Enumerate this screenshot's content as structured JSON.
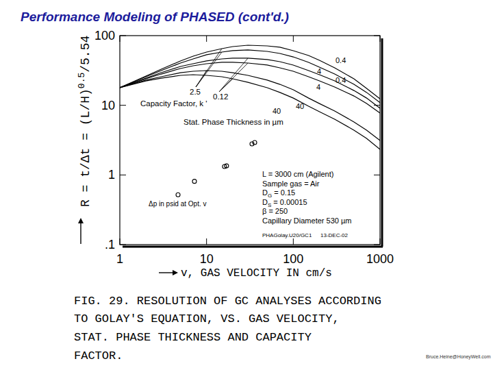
{
  "chart_data": {
    "type": "line",
    "title": "Performance Modeling of PHASED (cont'd.)",
    "xlabel": "v, GAS VELOCITY IN cm/s",
    "ylabel": [
      "R = t/Δt = (L/H)",
      "0.5",
      "/5.54"
    ],
    "log": true,
    "grid": false,
    "xlim": [
      1,
      1000
    ],
    "xticks": [
      1,
      10,
      100,
      1000
    ],
    "ylim": [
      0.1,
      100
    ],
    "yticks": [
      {
        "value": 0.1,
        "label": ".1"
      },
      1,
      10,
      100
    ],
    "x": [
      1,
      2,
      3,
      5,
      7,
      10,
      15,
      20,
      30,
      50,
      70,
      100,
      150,
      200,
      300,
      500,
      700,
      1000
    ],
    "series": [
      {
        "name": "0.4",
        "color": "#000000",
        "line_style": "solid",
        "values": [
          17.9,
          26.3,
          33.0,
          43.3,
          50.7,
          58.1,
          65.0,
          69.6,
          72.8,
          71.2,
          68.1,
          60.8,
          51.9,
          44.3,
          34.5,
          24.0,
          17.5,
          12.4
        ]
      },
      {
        "name": "4",
        "color": "#000000",
        "line_style": "solid",
        "values": [
          17.9,
          25.7,
          31.5,
          40.4,
          46.3,
          53.1,
          58.1,
          60.8,
          62.2,
          59.4,
          55.5,
          49.5,
          41.4,
          35.3,
          28.1,
          20.0,
          15.3,
          10.9
        ]
      },
      {
        "name": "0.4",
        "color": "#000000",
        "line_style": "solid",
        "values": [
          17.9,
          24.5,
          29.4,
          36.1,
          39.5,
          43.3,
          46.3,
          47.4,
          47.4,
          45.3,
          42.3,
          37.8,
          31.5,
          27.5,
          22.4,
          16.3,
          12.7,
          9.08
        ]
      },
      {
        "name": "4",
        "color": "#000000",
        "line_style": "solid",
        "values": [
          17.9,
          24.0,
          28.1,
          33.7,
          36.9,
          39.5,
          41.4,
          41.4,
          40.4,
          37.8,
          34.5,
          30.8,
          25.7,
          22.4,
          18.3,
          13.6,
          10.6,
          7.74
        ]
      },
      {
        "name": "40",
        "color": "#000000",
        "line_style": "solid",
        "values": [
          17.9,
          23.0,
          25.7,
          29.4,
          30.8,
          31.5,
          30.8,
          29.4,
          26.9,
          23.0,
          20.0,
          16.7,
          12.7,
          10.6,
          8.28,
          5.77,
          4.4,
          3.13
        ]
      },
      {
        "name": "40",
        "color": "#000000",
        "line_style": "solid",
        "values": [
          17.9,
          22.4,
          24.5,
          26.9,
          27.5,
          26.9,
          25.7,
          24.0,
          21.4,
          17.9,
          15.3,
          12.7,
          9.7,
          8.11,
          6.31,
          4.4,
          3.35,
          2.33
        ]
      },
      {
        "name": "Δp in psid at Opt. v",
        "type": "scatter",
        "marker": "circle",
        "color": "#000000",
        "x": [
          4.69,
          7.25,
          16.1,
          17.0,
          33.4,
          35.9
        ],
        "values": [
          0.52,
          0.81,
          1.32,
          1.35,
          2.79,
          2.92
        ]
      }
    ],
    "capacity_factor": {
      "label": "Capacity Factor, k '",
      "groups": [
        {
          "label": "2.5",
          "series": [
            0,
            1,
            4
          ]
        },
        {
          "label": "0.12",
          "series": [
            2,
            3,
            5
          ]
        }
      ]
    },
    "thickness_label": "Stat. Phase Thickness in µm",
    "parameters": [
      [
        "L = 3000 cm (Agilent)"
      ],
      [
        "Sample gas = Air"
      ],
      [
        "D",
        "G",
        " = 0.15"
      ],
      [
        "D",
        "S",
        " = 0.00015"
      ],
      [
        "β = 250"
      ],
      [
        "Capillary Diameter 530 µm"
      ]
    ],
    "file_id": "PHAGolay.U20/GC1",
    "date": "13-DEC-02",
    "caption": [
      "FIG. 29. RESOLUTION OF GC ANALYSES ACCORDING",
      "TO GOLAY'S EQUATION, VS. GAS VELOCITY,",
      "STAT. PHASE THICKNESS AND CAPACITY",
      "FACTOR."
    ]
  },
  "footer": "Bruce.Heine@HoneyWell.com"
}
